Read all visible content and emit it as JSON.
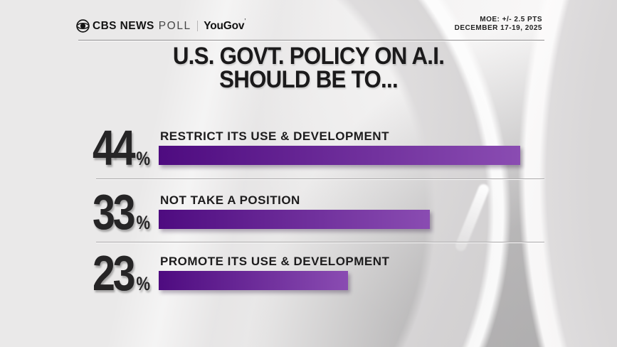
{
  "header": {
    "brand": {
      "eye_icon": "cbs-eye-icon",
      "cbs": "CBS NEWS",
      "poll": "POLL",
      "partner": "YouGov",
      "partner_mark": "’"
    },
    "meta_line1": "MOE: +/- 2.5 PTS",
    "meta_line2": "DECEMBER 17-19, 2025"
  },
  "title": {
    "line1": "U.S. GOVT. POLICY ON A.I.",
    "line2": "SHOULD BE TO..."
  },
  "chart_data": {
    "type": "bar",
    "orientation": "horizontal",
    "title": "U.S. GOVT. POLICY ON A.I. SHOULD BE TO...",
    "categories": [
      "RESTRICT ITS USE & DEVELOPMENT",
      "NOT TAKE A POSITION",
      "PROMOTE ITS USE & DEVELOPMENT"
    ],
    "values": [
      44,
      33,
      23
    ],
    "unit": "%",
    "value_labels": [
      "44%",
      "33%",
      "23%"
    ],
    "xlim": [
      0,
      44
    ],
    "bar_color_left": "#4e0b80",
    "bar_color_right": "#8a4cb2",
    "legend": false,
    "gridlines": false
  },
  "colors": {
    "background": "#eae9e9",
    "text_dark": "#1d1c1d",
    "rule": "#8f8d8e",
    "separator": "#aaa8a9"
  }
}
